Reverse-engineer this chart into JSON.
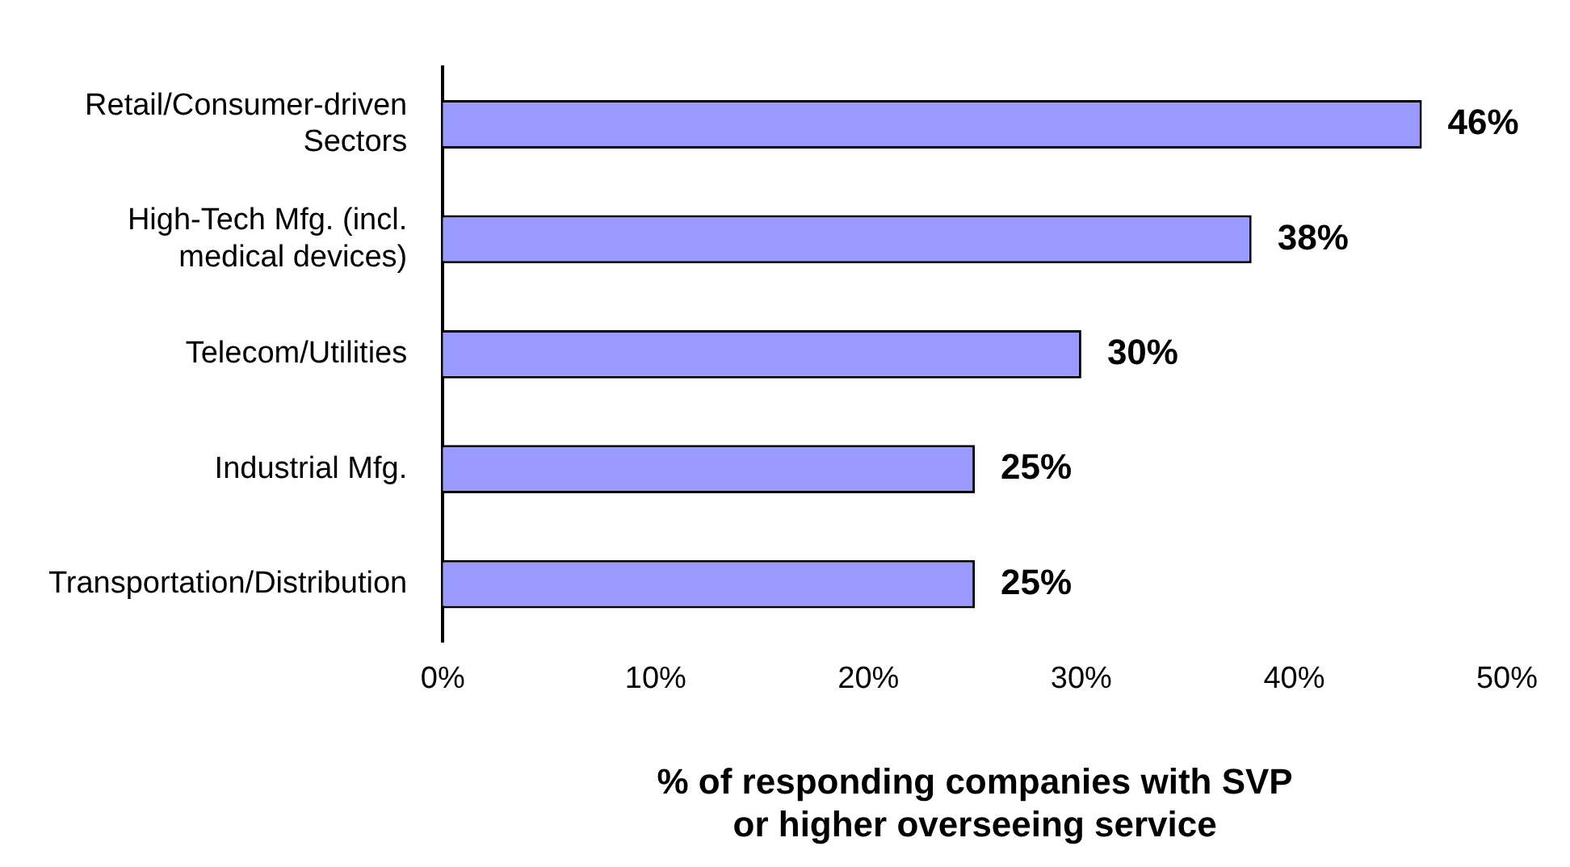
{
  "chart_data": {
    "type": "bar",
    "orientation": "horizontal",
    "xlabel": "% of responding companies with SVP or higher overseeing service",
    "categories": [
      "Retail/Consumer-driven Sectors",
      "High-Tech Mfg. (incl. medical devices)",
      "Telecom/Utilities",
      "Industrial Mfg.",
      "Transportation/Distribution"
    ],
    "values": [
      46,
      38,
      30,
      25,
      25
    ],
    "color": "#9999ff",
    "value_labels": [
      "46%",
      "38%",
      "30%",
      "25%",
      "25%"
    ],
    "xlim": [
      0,
      50
    ],
    "xticks": [
      {
        "value": 0,
        "label": "0%"
      },
      {
        "value": 10,
        "label": "10%"
      },
      {
        "value": 20,
        "label": "20%"
      },
      {
        "value": 30,
        "label": "30%"
      },
      {
        "value": 40,
        "label": "40%"
      },
      {
        "value": 50,
        "label": "50%"
      }
    ],
    "grid": false,
    "legend": false
  }
}
